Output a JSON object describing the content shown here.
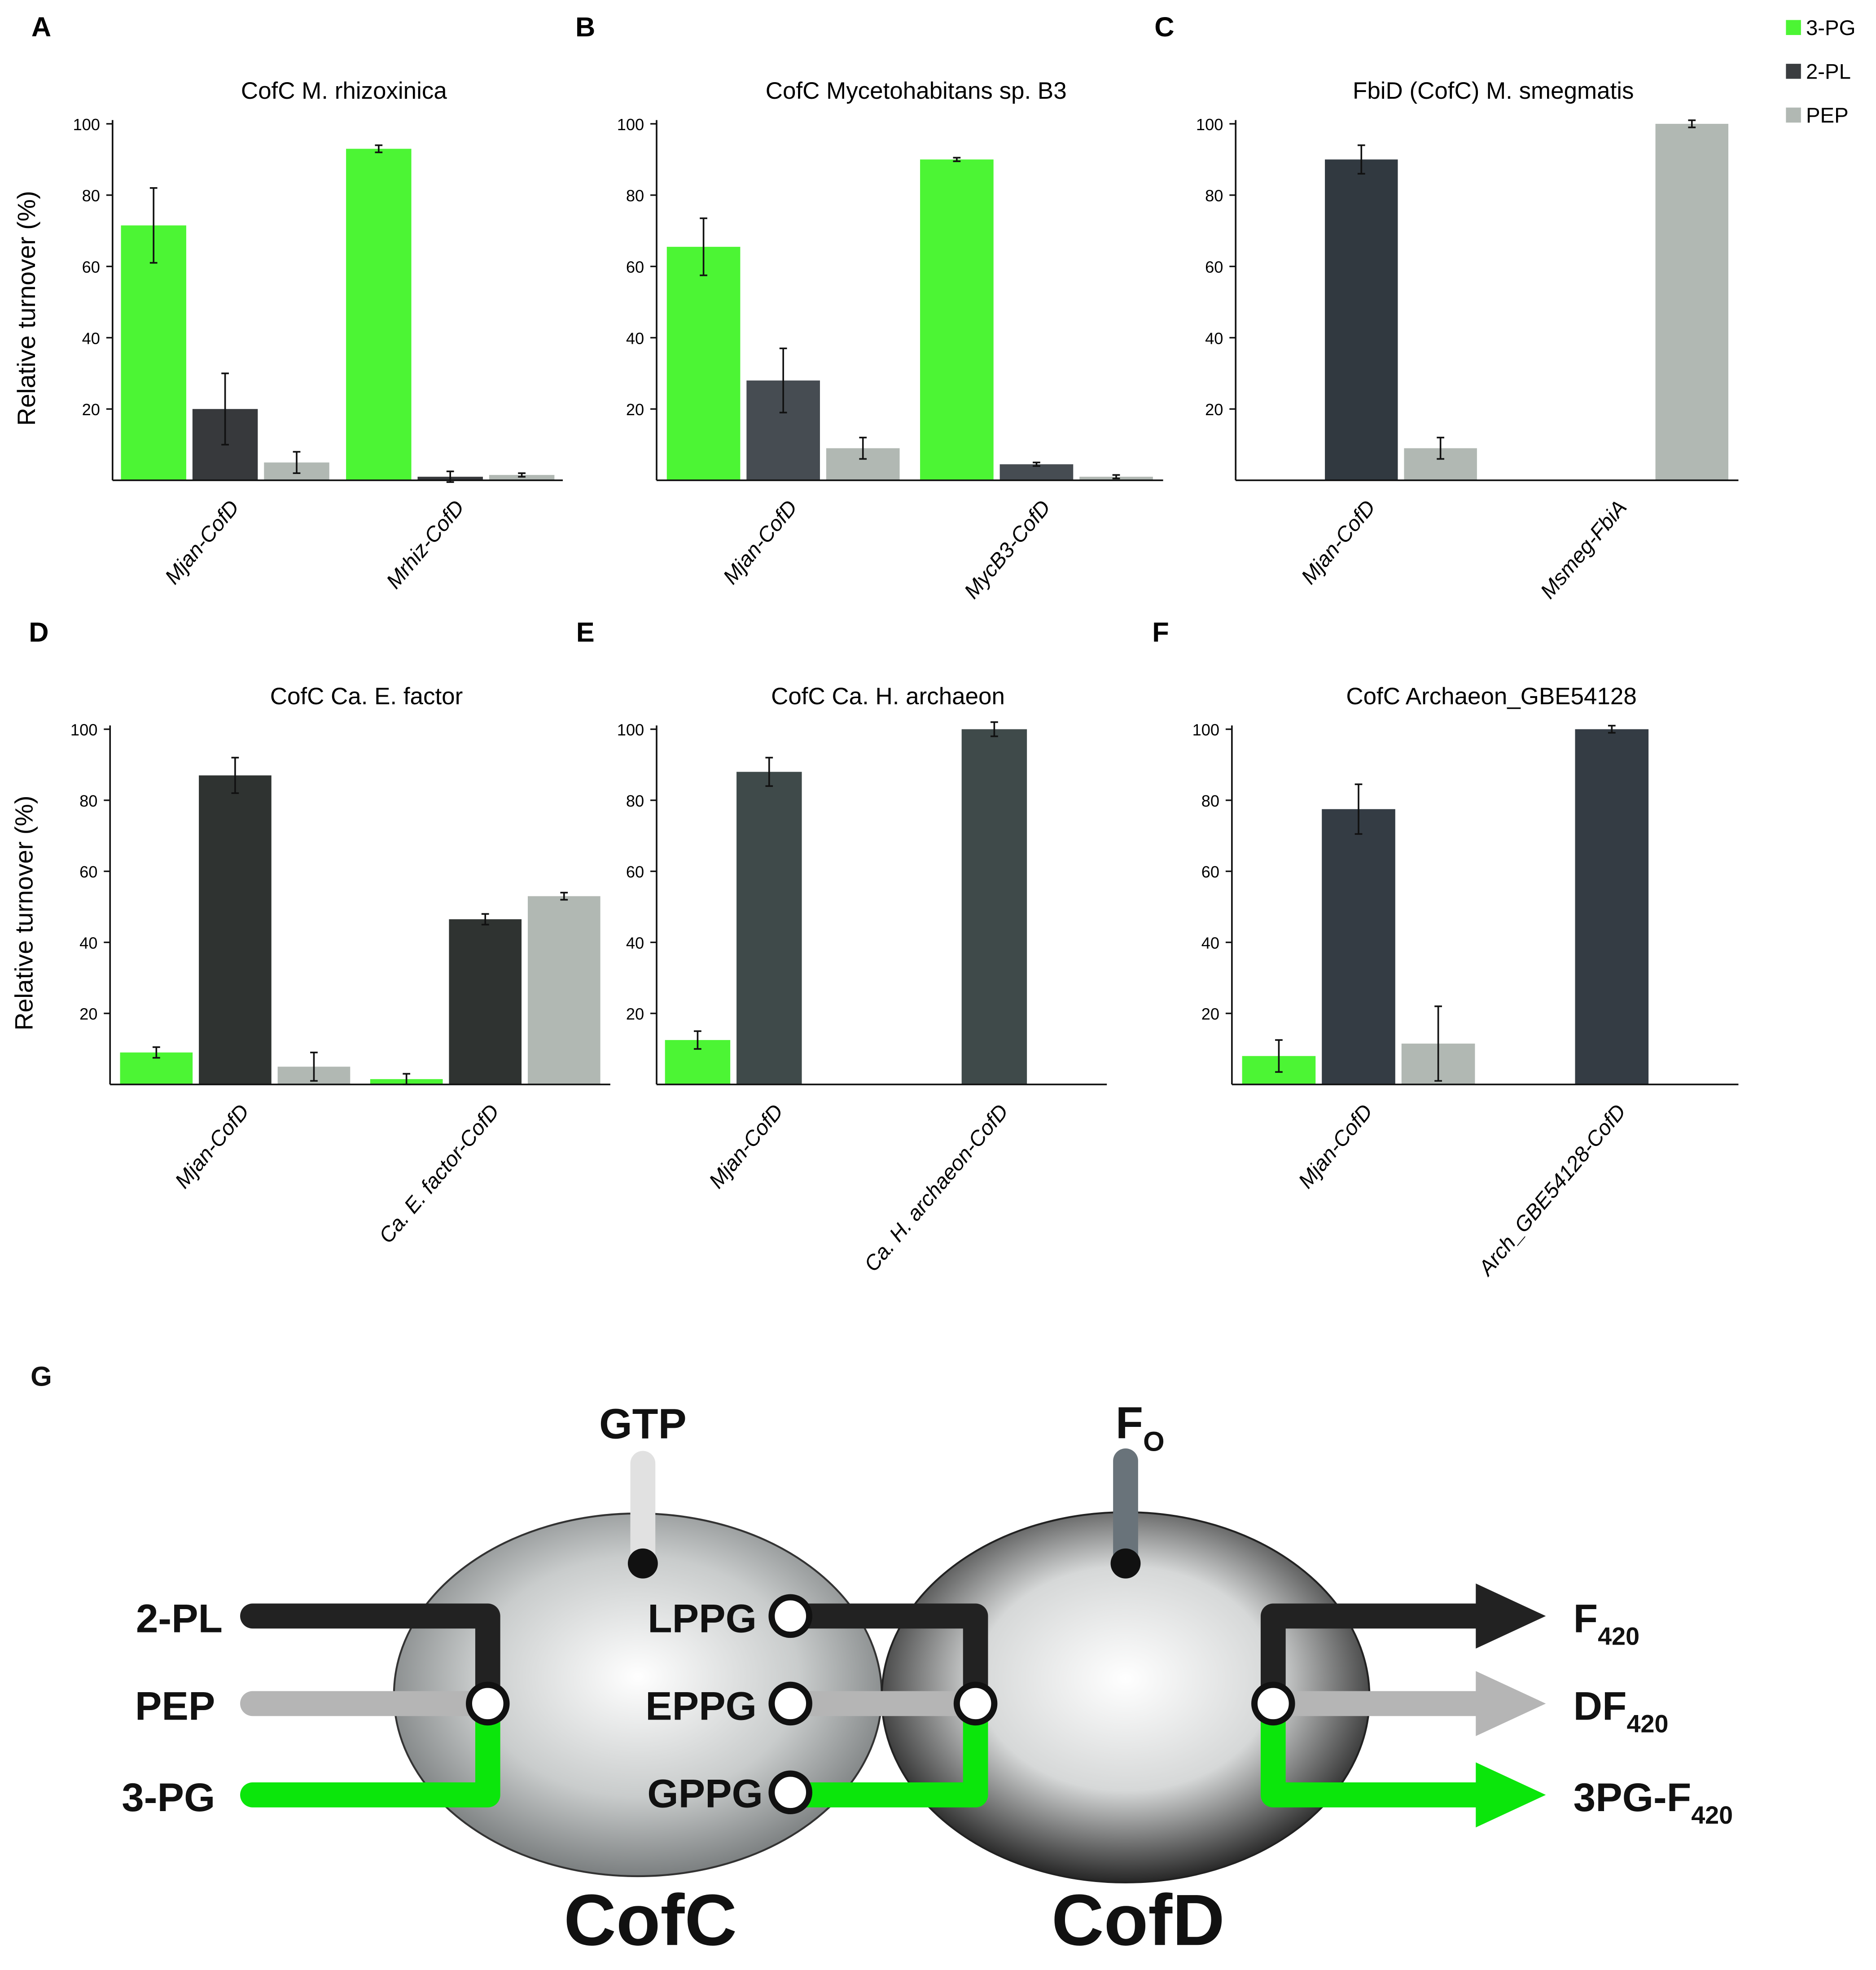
{
  "legend": [
    {
      "name": "3-PG",
      "color": "#4cf534"
    },
    {
      "name": "2-PL",
      "color": "#3a3d40"
    },
    {
      "name": "PEP",
      "color": "#b1b8b3"
    }
  ],
  "chart_data": [
    {
      "type": "bar",
      "panel": "A",
      "title": "CofC M. rhizoxinica",
      "ylabel": "Relative turnover (%)",
      "categories": [
        "Mjan-CofD",
        "Mrhiz-CofD"
      ],
      "ylim": [
        0,
        100
      ],
      "yticks": [
        20,
        40,
        60,
        80,
        100
      ],
      "series": [
        {
          "color": "#4cf534",
          "values": [
            71.5,
            93
          ],
          "errors": [
            10.5,
            1
          ]
        },
        {
          "color": "#37393c",
          "values": [
            20,
            1
          ],
          "errors": [
            10,
            1.5
          ]
        },
        {
          "color": "#b1b8b3",
          "values": [
            5,
            1.5
          ],
          "errors": [
            3,
            0.5
          ]
        }
      ]
    },
    {
      "type": "bar",
      "panel": "B",
      "title": "CofC Mycetohabitans sp. B3",
      "categories": [
        "Mjan-CofD",
        "MycB3-CofD"
      ],
      "ylim": [
        0,
        100
      ],
      "yticks": [
        20,
        40,
        60,
        80,
        100
      ],
      "series": [
        {
          "color": "#4cf534",
          "values": [
            65.5,
            90
          ],
          "errors": [
            8,
            0.5
          ]
        },
        {
          "color": "#464c52",
          "values": [
            28,
            4.5
          ],
          "errors": [
            9,
            0.5
          ]
        },
        {
          "color": "#b1b8b3",
          "values": [
            9,
            1
          ],
          "errors": [
            3,
            0.5
          ]
        }
      ]
    },
    {
      "type": "bar",
      "panel": "C",
      "title": "FbiD (CofC) M. smegmatis",
      "categories": [
        "Mjan-CofD",
        "Msmeg-FbiA"
      ],
      "ylim": [
        0,
        100
      ],
      "yticks": [
        20,
        40,
        60,
        80,
        100
      ],
      "series": [
        {
          "color": "#4cf534",
          "values": [
            null,
            null
          ],
          "errors": [
            null,
            null
          ]
        },
        {
          "color": "#313940",
          "values": [
            90,
            null
          ],
          "errors": [
            4,
            null
          ]
        },
        {
          "color": "#b1b8b3",
          "values": [
            9,
            100
          ],
          "errors": [
            3,
            1
          ]
        }
      ]
    },
    {
      "type": "bar",
      "panel": "D",
      "title": "CofC Ca. E. factor",
      "ylabel": "Relative turnover (%)",
      "categories": [
        "Mjan-CofD",
        "Ca. E. factor-CofD"
      ],
      "ylim": [
        0,
        100
      ],
      "yticks": [
        20,
        40,
        60,
        80,
        100
      ],
      "series": [
        {
          "color": "#4cf534",
          "values": [
            9,
            1.5
          ],
          "errors": [
            1.5,
            1.5
          ]
        },
        {
          "color": "#2f3331",
          "values": [
            87,
            46.5
          ],
          "errors": [
            5,
            1.5
          ]
        },
        {
          "color": "#b1b8b3",
          "values": [
            5,
            53
          ],
          "errors": [
            4,
            1
          ]
        }
      ]
    },
    {
      "type": "bar",
      "panel": "E",
      "title": "CofC Ca. H. archaeon",
      "categories": [
        "Mjan-CofD",
        "Ca. H. archaeon-CofD"
      ],
      "ylim": [
        0,
        100
      ],
      "yticks": [
        20,
        40,
        60,
        80,
        100
      ],
      "series": [
        {
          "color": "#4cf534",
          "values": [
            12.5,
            null
          ],
          "errors": [
            2.5,
            null
          ]
        },
        {
          "color": "#3f4a4a",
          "values": [
            88,
            100
          ],
          "errors": [
            4,
            2
          ]
        },
        {
          "color": "#b1b8b3",
          "values": [
            null,
            null
          ],
          "errors": [
            null,
            null
          ]
        }
      ]
    },
    {
      "type": "bar",
      "panel": "F",
      "title": "CofC Archaeon_GBE54128",
      "categories": [
        "Mjan-CofD",
        "Arch_GBE54128-CofD"
      ],
      "ylim": [
        0,
        100
      ],
      "yticks": [
        20,
        40,
        60,
        80,
        100
      ],
      "series": [
        {
          "color": "#4cf534",
          "values": [
            8,
            null
          ],
          "errors": [
            4.5,
            null
          ]
        },
        {
          "color": "#343c44",
          "values": [
            77.5,
            100
          ],
          "errors": [
            7,
            1
          ]
        },
        {
          "color": "#b1b8b3",
          "values": [
            11.5,
            null
          ],
          "errors": [
            10.5,
            null
          ]
        }
      ]
    }
  ],
  "diagram": {
    "panel": "G",
    "enzymes": [
      "CofC",
      "CofD"
    ],
    "inputs": [
      "2-PL",
      "PEP",
      "3-PG"
    ],
    "cofactor_c": "GTP",
    "cofactor_d": {
      "text": "F",
      "sub": "O"
    },
    "intermediates": [
      "LPPG",
      "EPPG",
      "GPPG"
    ],
    "outputs": [
      {
        "text": "F",
        "sub": "420"
      },
      {
        "text": "DF",
        "sub": "420"
      },
      {
        "text": "3PG-F",
        "sub": "420"
      }
    ]
  }
}
